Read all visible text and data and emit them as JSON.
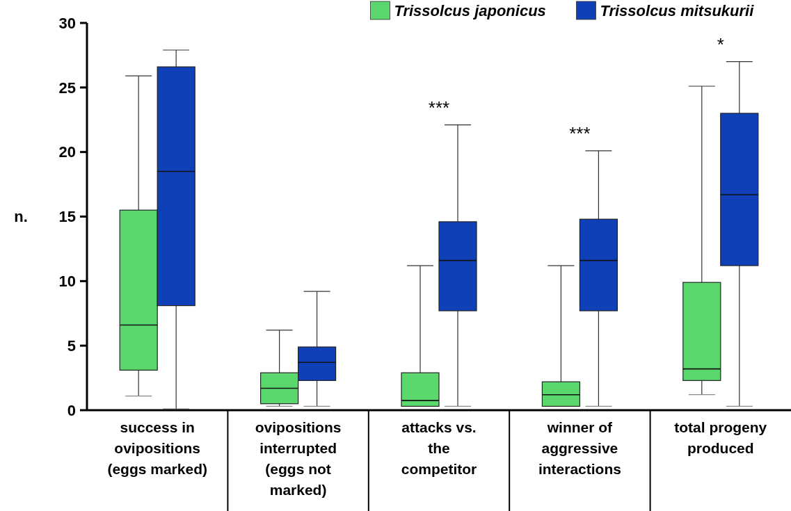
{
  "chart_data": {
    "type": "box",
    "ylabel": "n.",
    "categories": [
      "success in ovipositions (eggs marked)",
      "ovipositions interrupted (eggs not marked)",
      "attacks vs. the competitor",
      "winner of aggressive interactions",
      "total progeny produced"
    ],
    "ylim": [
      0,
      30
    ],
    "yticks": [
      0,
      5,
      10,
      15,
      20,
      25,
      30
    ],
    "legend": "top right",
    "grid": false,
    "series": [
      {
        "name": "Trissolcus japonicus",
        "color": "#5ad86e",
        "boxes": [
          {
            "low": 1.1,
            "q1": 3.1,
            "median": 6.6,
            "q3": 15.5,
            "high": 25.9
          },
          {
            "low": 0.3,
            "q1": 0.5,
            "median": 1.7,
            "q3": 2.9,
            "high": 6.2
          },
          {
            "low": 0.3,
            "q1": 0.3,
            "median": 0.75,
            "q3": 2.9,
            "high": 11.2
          },
          {
            "low": 0.3,
            "q1": 0.3,
            "median": 1.2,
            "q3": 2.2,
            "high": 11.2
          },
          {
            "low": 1.2,
            "q1": 2.3,
            "median": 3.2,
            "q3": 9.9,
            "high": 25.1
          }
        ]
      },
      {
        "name": "Trissolcus mitsukurii",
        "color": "#1040b8",
        "boxes": [
          {
            "low": 0.1,
            "q1": 8.1,
            "median": 18.5,
            "q3": 26.6,
            "high": 27.9
          },
          {
            "low": 0.3,
            "q1": 2.3,
            "median": 3.7,
            "q3": 4.9,
            "high": 9.2
          },
          {
            "low": 0.3,
            "q1": 7.7,
            "median": 11.6,
            "q3": 14.6,
            "high": 22.1
          },
          {
            "low": 0.3,
            "q1": 7.7,
            "median": 11.6,
            "q3": 14.8,
            "high": 20.1
          },
          {
            "low": 0.3,
            "q1": 11.2,
            "median": 16.7,
            "q3": 23.0,
            "high": 27.0
          }
        ]
      }
    ],
    "annotations": [
      "***",
      "***",
      "*"
    ]
  }
}
